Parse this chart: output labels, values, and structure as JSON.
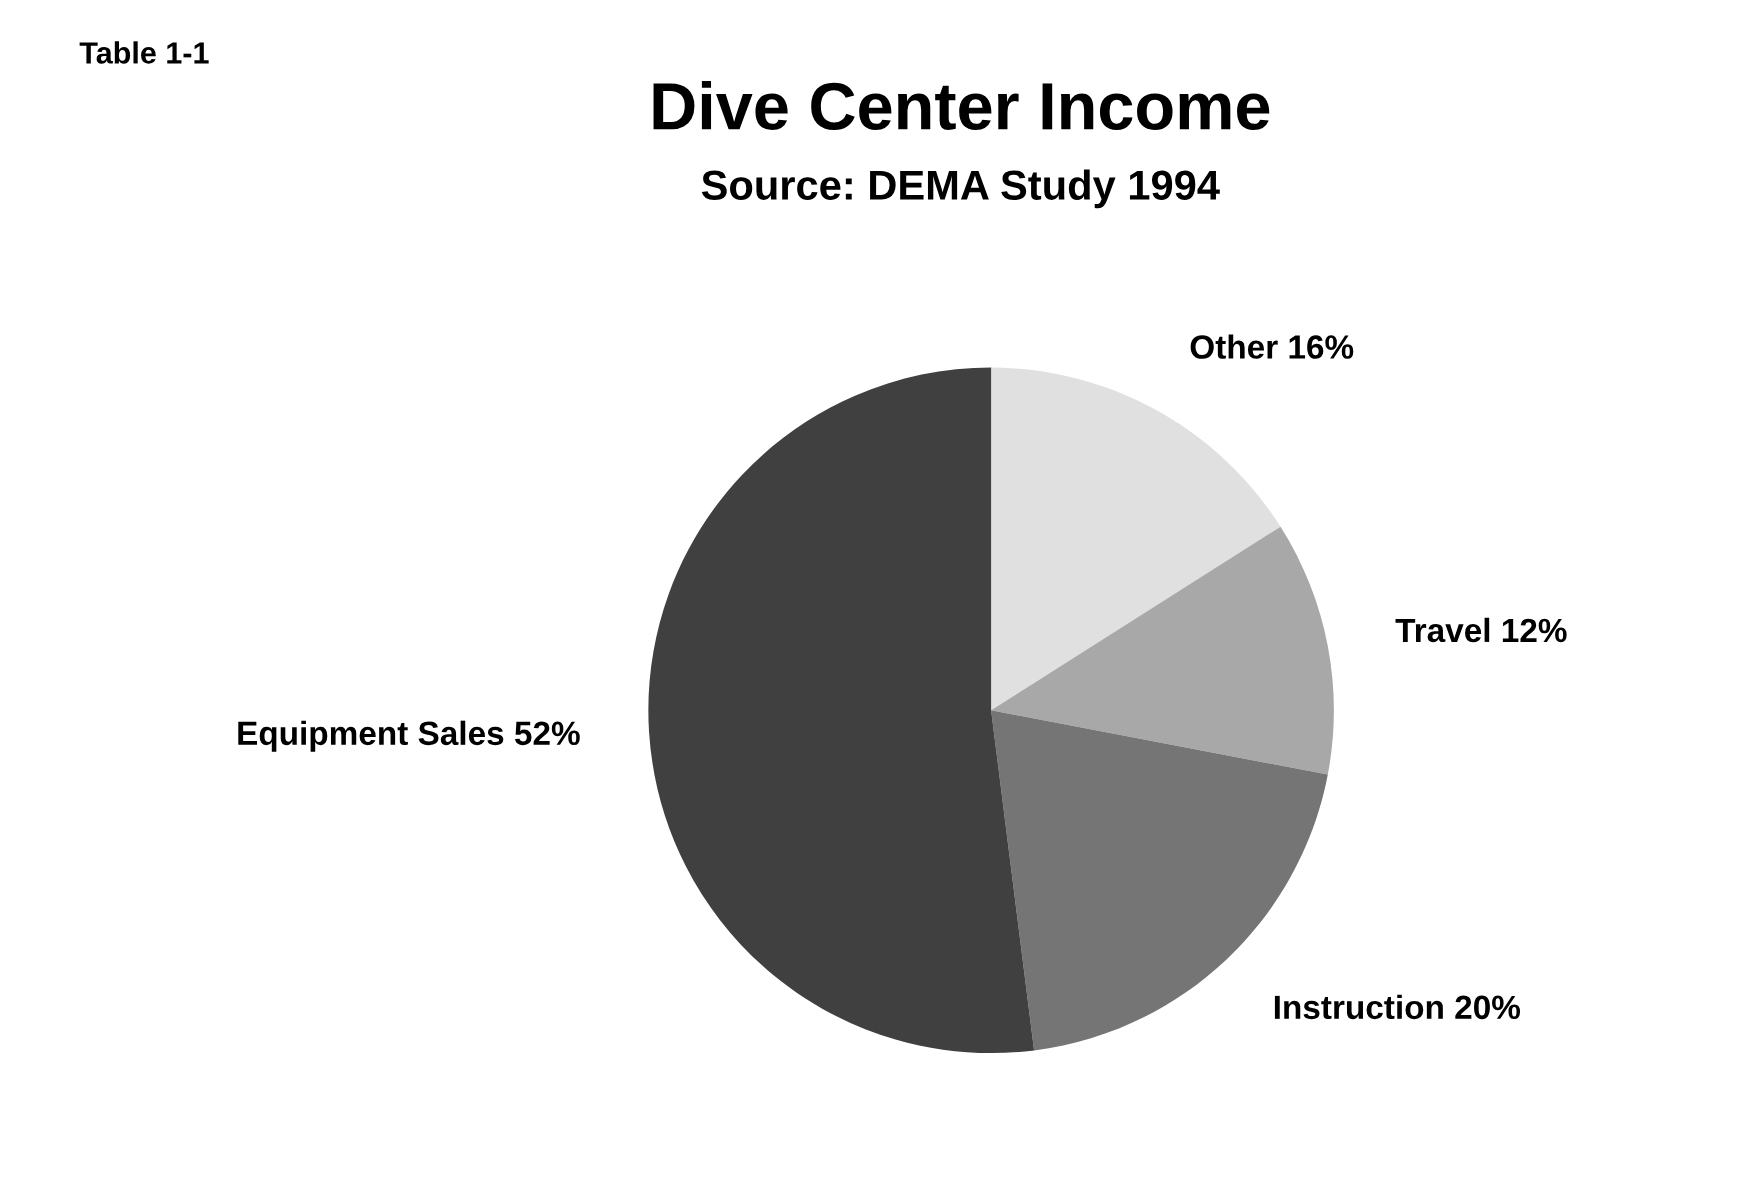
{
  "chart_data": {
    "type": "pie",
    "title": "Dive Center Income",
    "subtitle": "Source: DEMA Study 1994",
    "categories": [
      "Other",
      "Travel",
      "Instruction",
      "Equipment Sales"
    ],
    "values": [
      16,
      12,
      20,
      52
    ],
    "value_labels": [
      "16%",
      "12%",
      "20%",
      "52%"
    ],
    "colors": [
      "#e0e0e0",
      "#a8a8a8",
      "#757575",
      "#404040"
    ],
    "annotations": [
      "Table 1-1"
    ],
    "legend": false
  }
}
